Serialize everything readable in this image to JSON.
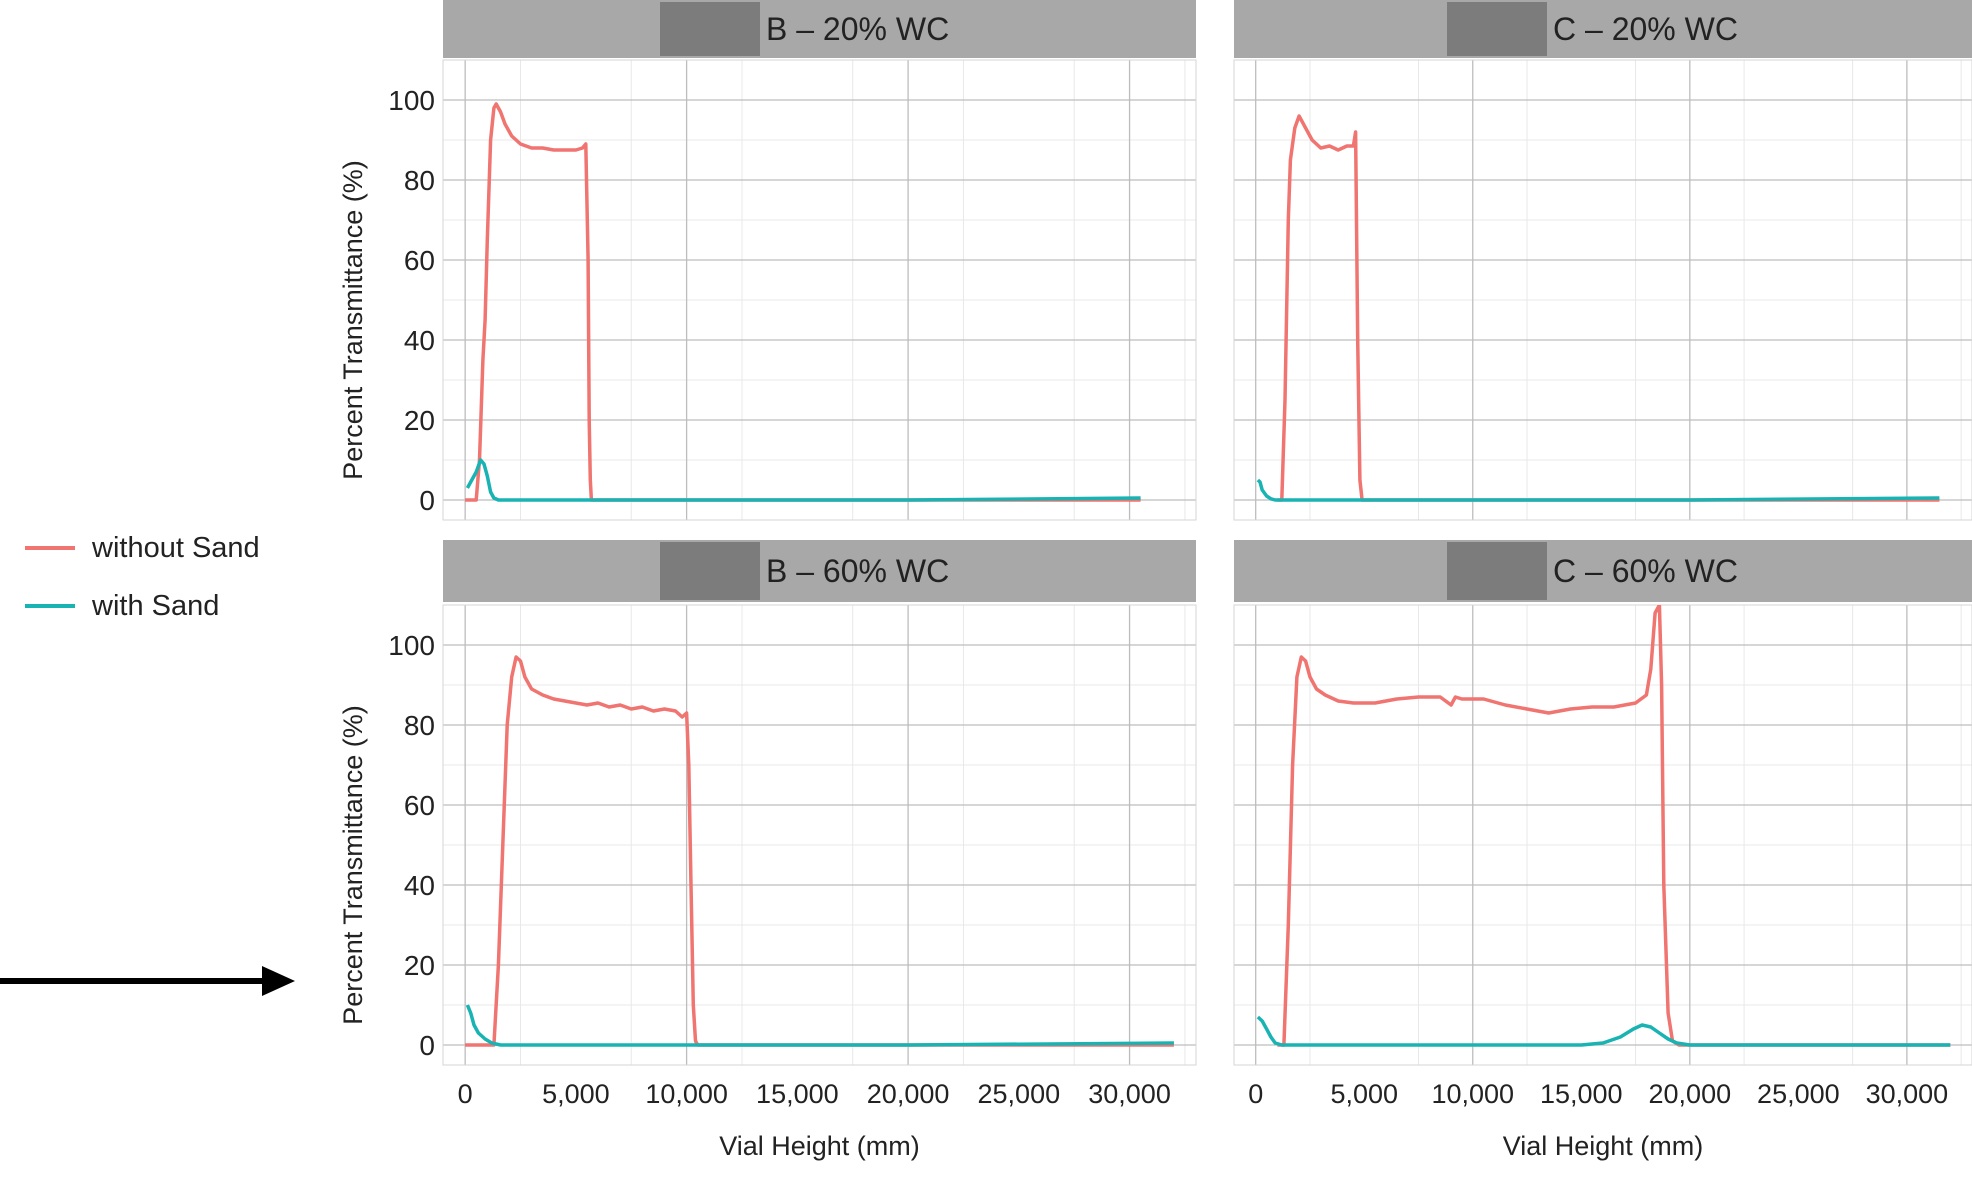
{
  "legend": {
    "items": [
      {
        "label": "without Sand",
        "color": "#F07470"
      },
      {
        "label": "with Sand",
        "color": "#19B3B3"
      }
    ],
    "placement": "left"
  },
  "annotation": {
    "arrow": "right-arrow-icon",
    "points_to": "bottom-left panel y-axis"
  },
  "colors": {
    "strip_bg": "#A8A8A8",
    "strip_redaction": "#7C7C7C",
    "grid_major": "#BDBDBD",
    "grid_minor": "#E8E8E8",
    "without_sand": "#F07470",
    "with_sand": "#19B3B3"
  },
  "chart_data": [
    {
      "type": "line",
      "title": "B – 20% WC",
      "xlabel": "",
      "ylabel": "Percent Transmittance (%)",
      "xlim": [
        -1000,
        33000
      ],
      "ylim": [
        -5,
        110
      ],
      "x_ticks": [],
      "x_tick_labels": [],
      "y_ticks": [
        0,
        20,
        40,
        60,
        80,
        100
      ],
      "y_tick_labels": [
        "0",
        "20",
        "40",
        "60",
        "80",
        "100"
      ],
      "grid": true,
      "series": [
        {
          "name": "without Sand",
          "x": [
            0,
            500,
            650,
            800,
            900,
            1000,
            1150,
            1300,
            1400,
            1600,
            1800,
            2100,
            2500,
            3000,
            3500,
            4000,
            4500,
            5000,
            5300,
            5450,
            5550,
            5600,
            5650,
            5700,
            6000,
            10000,
            20000,
            30500
          ],
          "y": [
            0,
            0,
            10,
            35,
            45,
            65,
            90,
            98,
            99,
            97,
            94,
            91,
            89,
            88,
            88,
            87.5,
            87.5,
            87.5,
            88,
            89,
            60,
            20,
            5,
            0,
            0,
            0,
            0,
            0
          ]
        },
        {
          "name": "with Sand",
          "x": [
            100,
            300,
            500,
            700,
            850,
            1000,
            1150,
            1300,
            1500,
            1800,
            2500,
            5000,
            10000,
            20000,
            30500
          ],
          "y": [
            3,
            5,
            7,
            10,
            9,
            6,
            2,
            0.5,
            0,
            0,
            0,
            0,
            0,
            0,
            0.5
          ]
        }
      ]
    },
    {
      "type": "line",
      "title": "C – 20% WC",
      "xlabel": "",
      "ylabel": "",
      "xlim": [
        -1000,
        33000
      ],
      "ylim": [
        -5,
        110
      ],
      "x_ticks": [],
      "x_tick_labels": [],
      "y_ticks": [
        0,
        20,
        40,
        60,
        80,
        100
      ],
      "y_tick_labels": [],
      "grid": true,
      "series": [
        {
          "name": "without Sand",
          "x": [
            1000,
            1200,
            1350,
            1500,
            1600,
            1800,
            2000,
            2300,
            2600,
            3000,
            3400,
            3800,
            4200,
            4500,
            4600,
            4700,
            4800,
            4900,
            5000,
            10000,
            20000,
            31500
          ],
          "y": [
            0,
            0,
            25,
            70,
            85,
            93,
            96,
            93,
            90,
            88,
            88.5,
            87.5,
            88.5,
            88.5,
            92,
            40,
            5,
            0,
            0,
            0,
            0,
            0
          ]
        },
        {
          "name": "with Sand",
          "x": [
            100,
            200,
            300,
            500,
            700,
            900,
            1200,
            2000,
            5000,
            10000,
            20000,
            31500
          ],
          "y": [
            5,
            4.5,
            2.5,
            1,
            0.3,
            0,
            0,
            0,
            0,
            0,
            0,
            0.5
          ]
        }
      ]
    },
    {
      "type": "line",
      "title": "B – 60% WC",
      "xlabel": "Vial Height (mm)",
      "ylabel": "Percent Transmittance (%)",
      "xlim": [
        -1000,
        33000
      ],
      "ylim": [
        -5,
        110
      ],
      "x_ticks": [
        0,
        5000,
        10000,
        15000,
        20000,
        25000,
        30000
      ],
      "x_tick_labels": [
        "0",
        "5,000",
        "10,000",
        "15,000",
        "20,000",
        "25,000",
        "30,000"
      ],
      "y_ticks": [
        0,
        20,
        40,
        60,
        80,
        100
      ],
      "y_tick_labels": [
        "0",
        "20",
        "40",
        "60",
        "80",
        "100"
      ],
      "grid": true,
      "series": [
        {
          "name": "without Sand",
          "x": [
            0,
            1300,
            1500,
            1700,
            1900,
            2100,
            2300,
            2500,
            2700,
            3000,
            3500,
            4000,
            4500,
            5000,
            5500,
            6000,
            6500,
            7000,
            7500,
            8000,
            8500,
            9000,
            9500,
            9800,
            10000,
            10100,
            10200,
            10300,
            10400,
            10500,
            11000,
            20000,
            32000
          ],
          "y": [
            0,
            0,
            20,
            50,
            80,
            92,
            97,
            96,
            92,
            89,
            87.5,
            86.5,
            86,
            85.5,
            85,
            85.5,
            84.5,
            85,
            84,
            84.5,
            83.5,
            84,
            83.5,
            82,
            83,
            70,
            40,
            10,
            1,
            0,
            0,
            0,
            0
          ]
        },
        {
          "name": "with Sand",
          "x": [
            100,
            250,
            400,
            600,
            900,
            1200,
            1600,
            2500,
            5000,
            10000,
            20000,
            32000
          ],
          "y": [
            10,
            8,
            5,
            3,
            1.5,
            0.5,
            0,
            0,
            0,
            0,
            0,
            0.5
          ]
        }
      ]
    },
    {
      "type": "line",
      "title": "C – 60% WC",
      "xlabel": "Vial Height (mm)",
      "ylabel": "",
      "xlim": [
        -1000,
        33000
      ],
      "ylim": [
        -5,
        110
      ],
      "x_ticks": [
        0,
        5000,
        10000,
        15000,
        20000,
        25000,
        30000
      ],
      "x_tick_labels": [
        "0",
        "5,000",
        "10,000",
        "15,000",
        "20,000",
        "25,000",
        "30,000"
      ],
      "y_ticks": [
        0,
        20,
        40,
        60,
        80,
        100
      ],
      "y_tick_labels": [],
      "grid": true,
      "series": [
        {
          "name": "without Sand",
          "x": [
            1000,
            1300,
            1500,
            1700,
            1900,
            2100,
            2300,
            2500,
            2800,
            3200,
            3800,
            4500,
            5500,
            6500,
            7500,
            8500,
            9000,
            9200,
            9500,
            10500,
            11500,
            12500,
            13500,
            14500,
            15500,
            16500,
            17500,
            18000,
            18200,
            18400,
            18600,
            18700,
            18800,
            19000,
            19200,
            19500,
            21000,
            32000
          ],
          "y": [
            0,
            0,
            30,
            70,
            92,
            97,
            96,
            92,
            89,
            87.5,
            86,
            85.5,
            85.5,
            86.5,
            87,
            87,
            85,
            87,
            86.5,
            86.5,
            85,
            84,
            83,
            84,
            84.5,
            84.5,
            85.5,
            87.5,
            94,
            108,
            110,
            90,
            40,
            8,
            1,
            0,
            0,
            0
          ]
        },
        {
          "name": "with Sand",
          "x": [
            100,
            300,
            500,
            700,
            900,
            1200,
            1500,
            3000,
            10000,
            15000,
            16000,
            16800,
            17400,
            17800,
            18200,
            18600,
            19000,
            19400,
            20000,
            22000,
            32000
          ],
          "y": [
            7,
            6,
            4,
            2,
            0.5,
            0,
            0,
            0,
            0,
            0,
            0.5,
            2,
            4,
            5,
            4.5,
            3,
            1.5,
            0.5,
            0,
            0,
            0
          ]
        }
      ]
    }
  ]
}
